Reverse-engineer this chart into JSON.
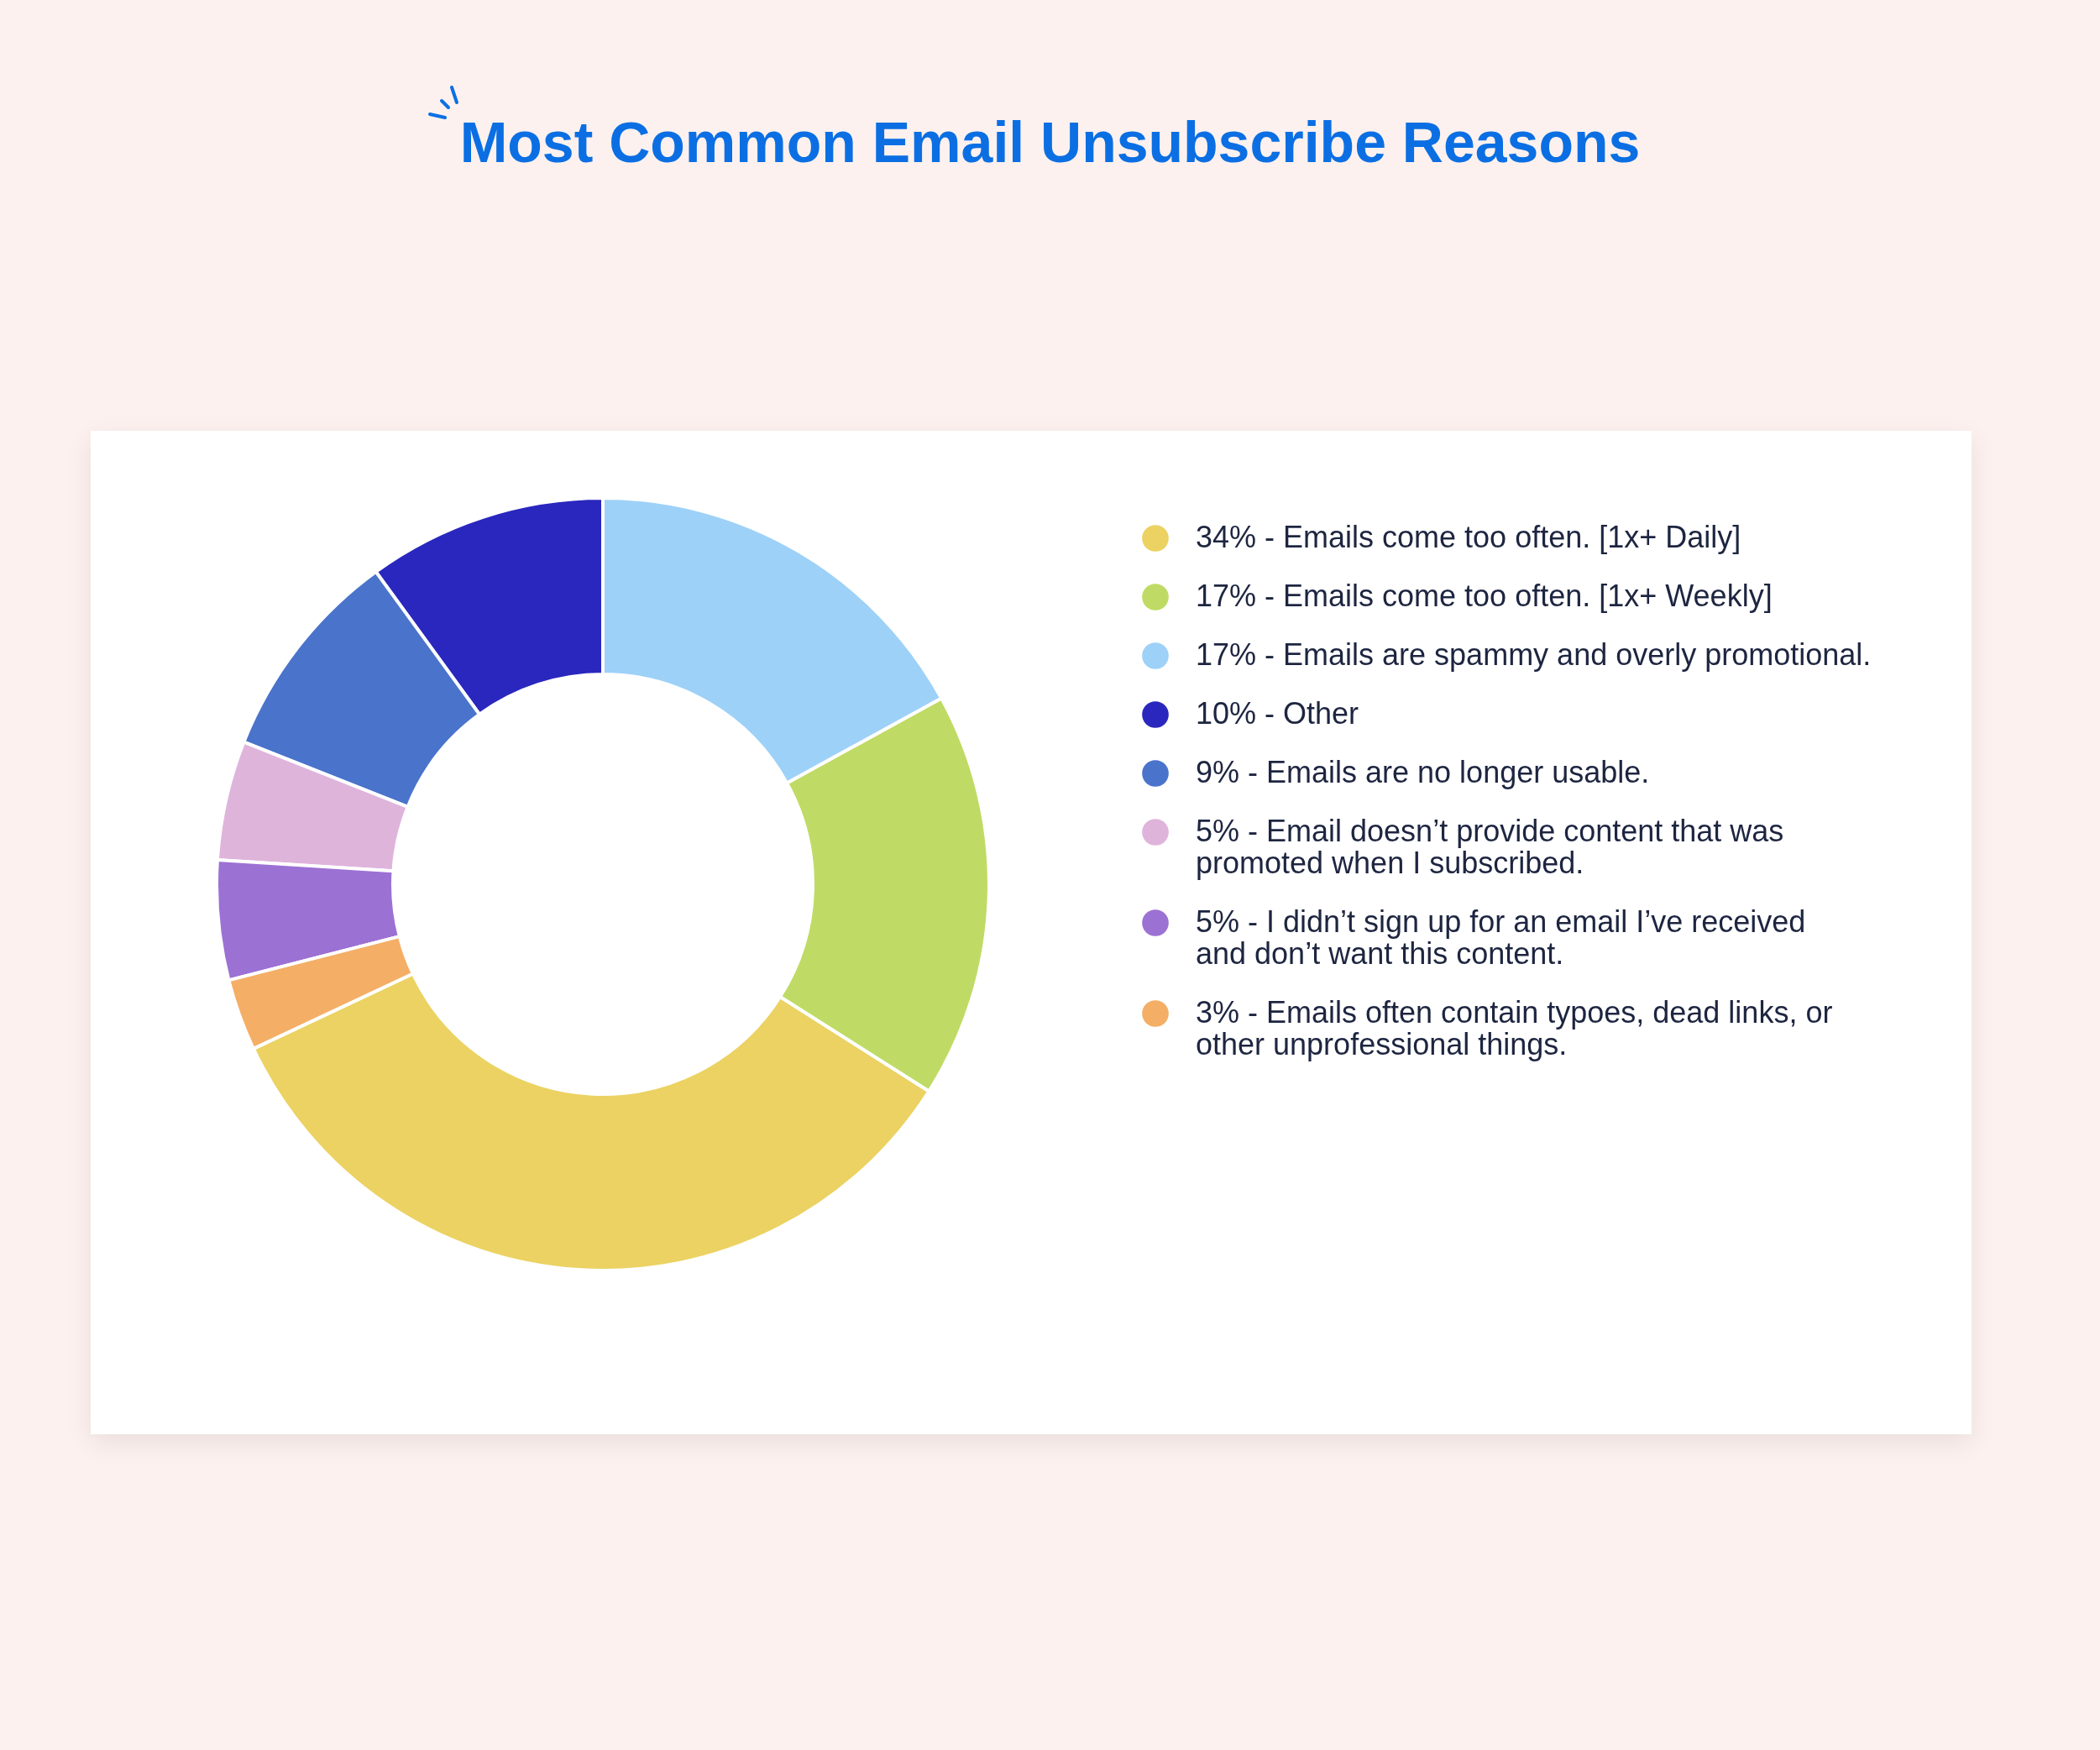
{
  "chart_data": {
    "type": "donut",
    "title": "Most Common Email Unsubscribe Reasons",
    "categories": [
      "Emails come too often. [1x+ Daily]",
      "Emails come too often. [1x+ Weekly]",
      "Emails are spammy and overly promotional.",
      "Other",
      "Emails are no longer usable.",
      "Email doesn’t provide content that was promoted when I subscribed.",
      "I didn’t sign up for an email I’ve received and don’t want this content.",
      "Emails often contain typoes, dead links, or other unprofessional things."
    ],
    "values": [
      34,
      17,
      17,
      10,
      9,
      5,
      5,
      3
    ],
    "value_labels": [
      "34% -",
      "17% -",
      "17% -",
      "10% -",
      "9% -",
      "5% -",
      "5% -",
      "3% -"
    ],
    "colors": [
      "#ebd262",
      "#bfdb65",
      "#9dd1f8",
      "#2a27be",
      "#4a73cb",
      "#dfb4db",
      "#9c71d4",
      "#f4ae65"
    ],
    "legend": "right"
  }
}
